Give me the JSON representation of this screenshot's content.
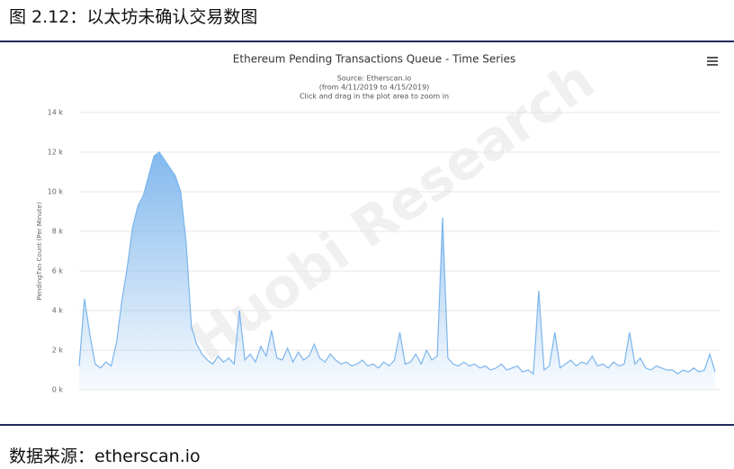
{
  "header": {
    "title": "图 2.12：以太坊未确认交易数图"
  },
  "watermark": "Huobi Research",
  "chart_data": {
    "type": "area",
    "title": "Ethereum Pending Transactions Queue - Time Series",
    "subtitle": [
      "Source: Etherscan.io",
      "(from 4/11/2019 to 4/15/2019)",
      "Click and drag in the plot area to zoom in"
    ],
    "y_label": "PendingTxn Count (Per Minute)",
    "color": "#7cb5ec",
    "grid": true,
    "ylim": [
      0,
      14000
    ],
    "yticks": [
      {
        "value": 0,
        "label": "0 k"
      },
      {
        "value": 2000,
        "label": "2 k"
      },
      {
        "value": 4000,
        "label": "4 k"
      },
      {
        "value": 6000,
        "label": "6 k"
      },
      {
        "value": 8000,
        "label": "8 k"
      },
      {
        "value": 10000,
        "label": "10 k"
      },
      {
        "value": 12000,
        "label": "12 k"
      },
      {
        "value": 14000,
        "label": "14 k"
      }
    ],
    "values": [
      1200,
      4600,
      2800,
      1300,
      1100,
      1400,
      1200,
      2400,
      4500,
      6200,
      8200,
      9300,
      9800,
      10800,
      11800,
      12000,
      11600,
      11200,
      10800,
      10000,
      7500,
      3200,
      2300,
      1800,
      1500,
      1300,
      1700,
      1400,
      1600,
      1300,
      4000,
      1500,
      1800,
      1400,
      2200,
      1700,
      3000,
      1600,
      1500,
      2100,
      1400,
      1900,
      1500,
      1700,
      2300,
      1600,
      1400,
      1800,
      1500,
      1300,
      1400,
      1200,
      1300,
      1500,
      1200,
      1300,
      1100,
      1400,
      1200,
      1500,
      2900,
      1300,
      1400,
      1800,
      1300,
      2000,
      1500,
      1700,
      8700,
      1600,
      1300,
      1200,
      1400,
      1200,
      1300,
      1100,
      1200,
      1000,
      1100,
      1300,
      1000,
      1100,
      1200,
      900,
      1000,
      800,
      5000,
      1000,
      1200,
      2900,
      1100,
      1300,
      1500,
      1200,
      1400,
      1300,
      1700,
      1200,
      1300,
      1100,
      1400,
      1200,
      1300,
      2900,
      1300,
      1600,
      1100,
      1000,
      1200,
      1100,
      1000,
      1000,
      800,
      1000,
      900,
      1100,
      900,
      1000,
      1800,
      900
    ]
  },
  "footer": {
    "source": "数据来源：etherscan.io"
  }
}
